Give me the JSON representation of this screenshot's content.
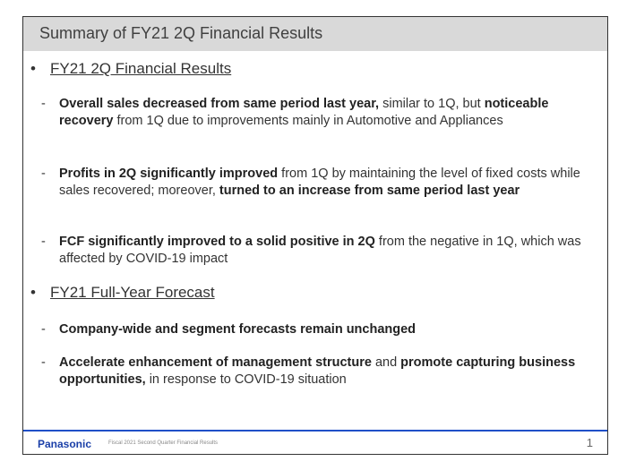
{
  "slide": {
    "title": "Summary of FY21 2Q Financial Results",
    "sections": [
      {
        "heading": "FY21 2Q Financial Results",
        "bullets": [
          [
            {
              "t": "Overall sales decreased from same period last year,",
              "b": true
            },
            {
              "t": " similar to 1Q, but ",
              "b": false
            },
            {
              "t": "noticeable recovery",
              "b": true
            },
            {
              "t": " from 1Q due to improvements mainly in Automotive and Appliances",
              "b": false
            }
          ],
          [
            {
              "t": "Profits in 2Q significantly improved",
              "b": true
            },
            {
              "t": " from 1Q by maintaining the level of fixed costs while sales recovered; moreover, ",
              "b": false
            },
            {
              "t": "turned to an increase from same period last year",
              "b": true
            }
          ],
          [
            {
              "t": "FCF significantly improved to a solid positive in 2Q",
              "b": true
            },
            {
              "t": " from the negative in 1Q, which was affected by COVID-19 impact",
              "b": false
            }
          ]
        ]
      },
      {
        "heading": "FY21 Full-Year Forecast",
        "bullets": [
          [
            {
              "t": "Company-wide and segment forecasts remain unchanged",
              "b": true
            }
          ],
          [
            {
              "t": "Accelerate enhancement of management structure",
              "b": true
            },
            {
              "t": " and ",
              "b": false
            },
            {
              "t": "promote capturing business opportunities,",
              "b": true
            },
            {
              "t": " in response to COVID-19 situation",
              "b": false
            }
          ]
        ]
      }
    ],
    "bullet_symbol": "•",
    "dash_symbol": "-"
  },
  "footer": {
    "logo": "Panasonic",
    "text": "Fiscal 2021 Second Quarter Financial Results",
    "page": "1"
  },
  "colors": {
    "accent": "#1f4fc8",
    "title_bar": "#d9d9d9"
  }
}
